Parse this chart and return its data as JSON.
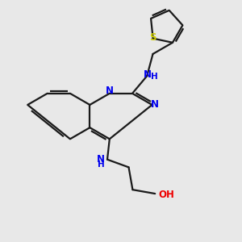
{
  "background_color": "#e8e8e8",
  "bond_color": "#1a1a1a",
  "N_color": "#0000ee",
  "S_color": "#cccc00",
  "O_color": "#ee0000",
  "line_width": 1.6,
  "figsize": [
    3.0,
    3.0
  ],
  "dpi": 100,
  "xlim": [
    0,
    10
  ],
  "ylim": [
    0,
    10
  ],
  "bl": 0.95
}
